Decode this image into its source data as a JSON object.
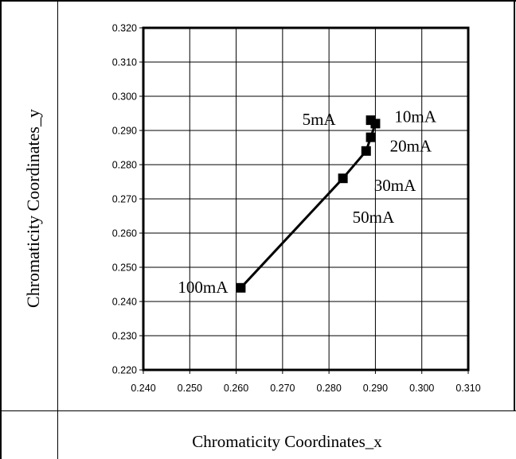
{
  "chart_data": {
    "type": "line",
    "xlabel": "Chromaticity Coordinates_x",
    "ylabel": "Chromaticity Coordinates_y",
    "xlim": [
      0.24,
      0.31
    ],
    "ylim": [
      0.22,
      0.32
    ],
    "xticks": [
      "0.240",
      "0.250",
      "0.260",
      "0.270",
      "0.280",
      "0.290",
      "0.300",
      "0.310"
    ],
    "yticks": [
      "0.220",
      "0.230",
      "0.240",
      "0.250",
      "0.260",
      "0.270",
      "0.280",
      "0.290",
      "0.300",
      "0.310",
      "0.320"
    ],
    "grid": true,
    "points": [
      {
        "label": "5mA",
        "x": 0.289,
        "y": 0.293
      },
      {
        "label": "10mA",
        "x": 0.29,
        "y": 0.292
      },
      {
        "label": "20mA",
        "x": 0.289,
        "y": 0.288
      },
      {
        "label": "30mA",
        "x": 0.288,
        "y": 0.284
      },
      {
        "label": "50mA",
        "x": 0.283,
        "y": 0.276
      },
      {
        "label": "100mA",
        "x": 0.261,
        "y": 0.244
      }
    ]
  }
}
